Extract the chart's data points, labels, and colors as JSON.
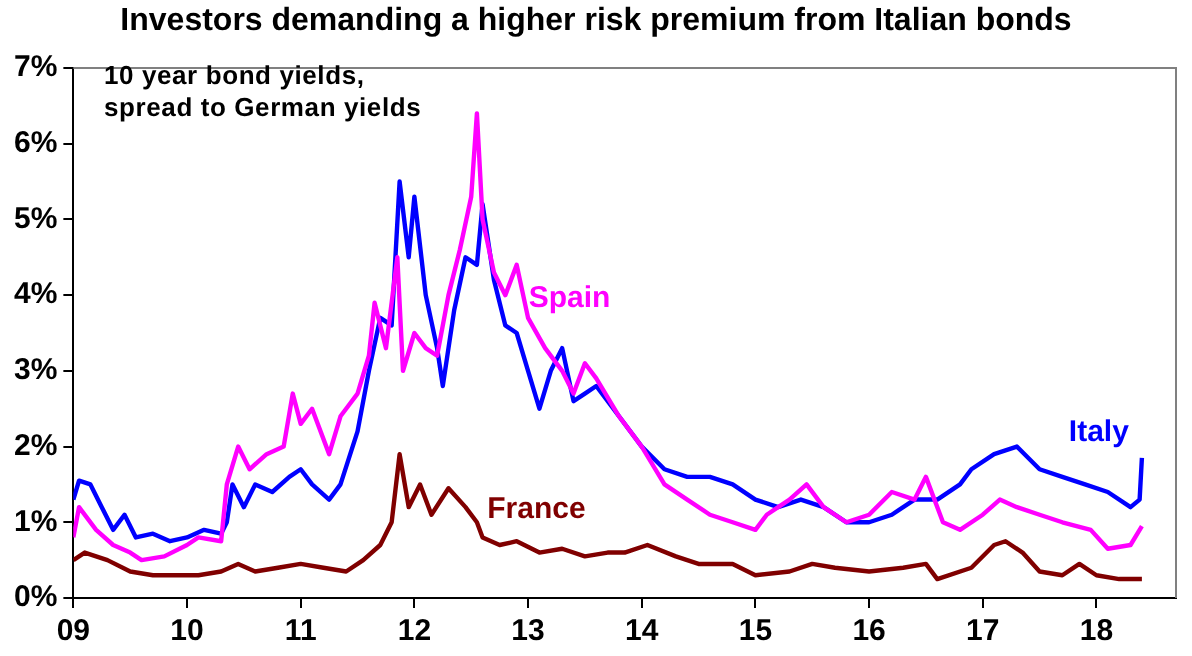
{
  "chart_data": {
    "type": "line",
    "title": "Investors demanding a higher risk premium from Italian bonds",
    "annotations": [
      "10 year bond yields, spread to German yields"
    ],
    "xlim": [
      2009,
      2018.7
    ],
    "xticks": [
      {
        "value": 2009,
        "label": "09"
      },
      {
        "value": 2010,
        "label": "10"
      },
      {
        "value": 2011,
        "label": "11"
      },
      {
        "value": 2012,
        "label": "12"
      },
      {
        "value": 2013,
        "label": "13"
      },
      {
        "value": 2014,
        "label": "14"
      },
      {
        "value": 2015,
        "label": "15"
      },
      {
        "value": 2016,
        "label": "16"
      },
      {
        "value": 2017,
        "label": "17"
      },
      {
        "value": 2018,
        "label": "18"
      }
    ],
    "ylim": [
      0,
      7
    ],
    "yticks": [
      {
        "value": 0,
        "label": "0%"
      },
      {
        "value": 1,
        "label": "1%"
      },
      {
        "value": 2,
        "label": "2%"
      },
      {
        "value": 3,
        "label": "3%"
      },
      {
        "value": 4,
        "label": "4%"
      },
      {
        "value": 5,
        "label": "5%"
      },
      {
        "value": 6,
        "label": "6%"
      },
      {
        "value": 7,
        "label": "7%"
      }
    ],
    "grid": false,
    "legend": false,
    "marker": "none",
    "line_style": "solid",
    "series": [
      {
        "name": "France",
        "color": "#800000",
        "x": [
          2009.0,
          2009.1,
          2009.3,
          2009.5,
          2009.7,
          2009.9,
          2010.1,
          2010.3,
          2010.45,
          2010.6,
          2010.8,
          2011.0,
          2011.2,
          2011.4,
          2011.55,
          2011.7,
          2011.8,
          2011.87,
          2011.95,
          2012.05,
          2012.15,
          2012.3,
          2012.45,
          2012.55,
          2012.6,
          2012.75,
          2012.9,
          2013.1,
          2013.3,
          2013.5,
          2013.7,
          2013.85,
          2014.05,
          2014.3,
          2014.5,
          2014.8,
          2015.0,
          2015.3,
          2015.5,
          2015.7,
          2016.0,
          2016.3,
          2016.5,
          2016.6,
          2016.9,
          2017.1,
          2017.2,
          2017.35,
          2017.5,
          2017.7,
          2017.85,
          2018.0,
          2018.2,
          2018.4
        ],
        "values": [
          0.5,
          0.6,
          0.5,
          0.35,
          0.3,
          0.3,
          0.3,
          0.35,
          0.45,
          0.35,
          0.4,
          0.45,
          0.4,
          0.35,
          0.5,
          0.7,
          1.0,
          1.9,
          1.2,
          1.5,
          1.1,
          1.45,
          1.2,
          1.0,
          0.8,
          0.7,
          0.75,
          0.6,
          0.65,
          0.55,
          0.6,
          0.6,
          0.7,
          0.55,
          0.45,
          0.45,
          0.3,
          0.35,
          0.45,
          0.4,
          0.35,
          0.4,
          0.45,
          0.25,
          0.4,
          0.7,
          0.75,
          0.6,
          0.35,
          0.3,
          0.45,
          0.3,
          0.25,
          0.25
        ]
      },
      {
        "name": "Spain",
        "color": "#ff00ff",
        "x": [
          2009.0,
          2009.05,
          2009.2,
          2009.35,
          2009.5,
          2009.6,
          2009.8,
          2010.0,
          2010.1,
          2010.3,
          2010.35,
          2010.45,
          2010.55,
          2010.7,
          2010.85,
          2010.93,
          2011.0,
          2011.1,
          2011.25,
          2011.35,
          2011.5,
          2011.6,
          2011.65,
          2011.75,
          2011.85,
          2011.9,
          2012.0,
          2012.1,
          2012.2,
          2012.3,
          2012.4,
          2012.5,
          2012.55,
          2012.6,
          2012.7,
          2012.8,
          2012.9,
          2013.0,
          2013.15,
          2013.3,
          2013.4,
          2013.5,
          2013.6,
          2013.8,
          2014.0,
          2014.2,
          2014.4,
          2014.6,
          2014.8,
          2015.0,
          2015.1,
          2015.3,
          2015.45,
          2015.6,
          2015.8,
          2016.0,
          2016.2,
          2016.4,
          2016.5,
          2016.65,
          2016.8,
          2017.0,
          2017.15,
          2017.3,
          2017.5,
          2017.7,
          2017.95,
          2018.1,
          2018.3,
          2018.4
        ],
        "values": [
          0.8,
          1.2,
          0.9,
          0.7,
          0.6,
          0.5,
          0.55,
          0.7,
          0.8,
          0.75,
          1.5,
          2.0,
          1.7,
          1.9,
          2.0,
          2.7,
          2.3,
          2.5,
          1.9,
          2.4,
          2.7,
          3.2,
          3.9,
          3.3,
          4.5,
          3.0,
          3.5,
          3.3,
          3.2,
          4.0,
          4.6,
          5.3,
          6.4,
          5.0,
          4.3,
          4.0,
          4.4,
          3.7,
          3.3,
          3.0,
          2.7,
          3.1,
          2.9,
          2.4,
          2.0,
          1.5,
          1.3,
          1.1,
          1.0,
          0.9,
          1.1,
          1.3,
          1.5,
          1.2,
          1.0,
          1.1,
          1.4,
          1.3,
          1.6,
          1.0,
          0.9,
          1.1,
          1.3,
          1.2,
          1.1,
          1.0,
          0.9,
          0.65,
          0.7,
          0.95
        ]
      },
      {
        "name": "Italy",
        "color": "#0000ff",
        "x": [
          2009.0,
          2009.05,
          2009.15,
          2009.25,
          2009.35,
          2009.45,
          2009.55,
          2009.7,
          2009.85,
          2010.0,
          2010.15,
          2010.3,
          2010.35,
          2010.4,
          2010.5,
          2010.6,
          2010.75,
          2010.9,
          2011.0,
          2011.1,
          2011.25,
          2011.35,
          2011.5,
          2011.6,
          2011.7,
          2011.8,
          2011.87,
          2011.95,
          2012.0,
          2012.1,
          2012.2,
          2012.25,
          2012.35,
          2012.45,
          2012.55,
          2012.6,
          2012.7,
          2012.8,
          2012.9,
          2013.0,
          2013.1,
          2013.2,
          2013.3,
          2013.4,
          2013.5,
          2013.6,
          2013.8,
          2014.0,
          2014.2,
          2014.4,
          2014.6,
          2014.8,
          2015.0,
          2015.2,
          2015.4,
          2015.6,
          2015.8,
          2016.0,
          2016.2,
          2016.4,
          2016.6,
          2016.8,
          2016.9,
          2017.1,
          2017.3,
          2017.5,
          2017.7,
          2017.9,
          2018.1,
          2018.3,
          2018.38,
          2018.4
        ],
        "values": [
          1.3,
          1.55,
          1.5,
          1.2,
          0.9,
          1.1,
          0.8,
          0.85,
          0.75,
          0.8,
          0.9,
          0.85,
          1.0,
          1.5,
          1.2,
          1.5,
          1.4,
          1.6,
          1.7,
          1.5,
          1.3,
          1.5,
          2.2,
          3.0,
          3.7,
          3.6,
          5.5,
          4.5,
          5.3,
          4.0,
          3.3,
          2.8,
          3.8,
          4.5,
          4.4,
          5.2,
          4.2,
          3.6,
          3.5,
          3.0,
          2.5,
          3.0,
          3.3,
          2.6,
          2.7,
          2.8,
          2.4,
          2.0,
          1.7,
          1.6,
          1.6,
          1.5,
          1.3,
          1.2,
          1.3,
          1.2,
          1.0,
          1.0,
          1.1,
          1.3,
          1.3,
          1.5,
          1.7,
          1.9,
          2.0,
          1.7,
          1.6,
          1.5,
          1.4,
          1.2,
          1.3,
          1.85
        ]
      }
    ]
  }
}
